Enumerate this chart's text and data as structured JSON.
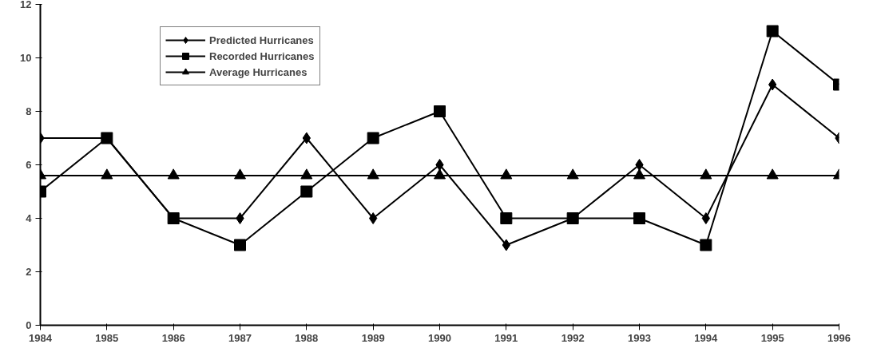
{
  "chart_data": {
    "type": "line",
    "x": [
      1984,
      1985,
      1986,
      1987,
      1988,
      1989,
      1990,
      1991,
      1992,
      1993,
      1994,
      1995,
      1996
    ],
    "series": [
      {
        "name": "Predicted Hurricanes",
        "color": "#000000",
        "marker": "diamond",
        "values": [
          7,
          7,
          4,
          4,
          7,
          4,
          6,
          3,
          4,
          6,
          4,
          9,
          7
        ]
      },
      {
        "name": "Recorded Hurricanes",
        "color": "#000000",
        "marker": "square",
        "values": [
          5,
          7,
          4,
          3,
          5,
          7,
          8,
          4,
          4,
          4,
          3,
          11,
          9
        ]
      },
      {
        "name": "Average Hurricanes",
        "color": "#000000",
        "marker": "triangle",
        "values": [
          5.6,
          5.6,
          5.6,
          5.6,
          5.6,
          5.6,
          5.6,
          5.6,
          5.6,
          5.6,
          5.6,
          5.6,
          5.6
        ]
      }
    ],
    "xlim": [
      1984,
      1996
    ],
    "xticks": [
      1984,
      1985,
      1986,
      1987,
      1988,
      1989,
      1990,
      1991,
      1992,
      1993,
      1994,
      1995,
      1996
    ],
    "ylim": [
      0,
      12
    ],
    "yticks": [
      0,
      2,
      4,
      6,
      8,
      10,
      12
    ],
    "grid": false,
    "legend": "top left",
    "line_style": "solid"
  }
}
